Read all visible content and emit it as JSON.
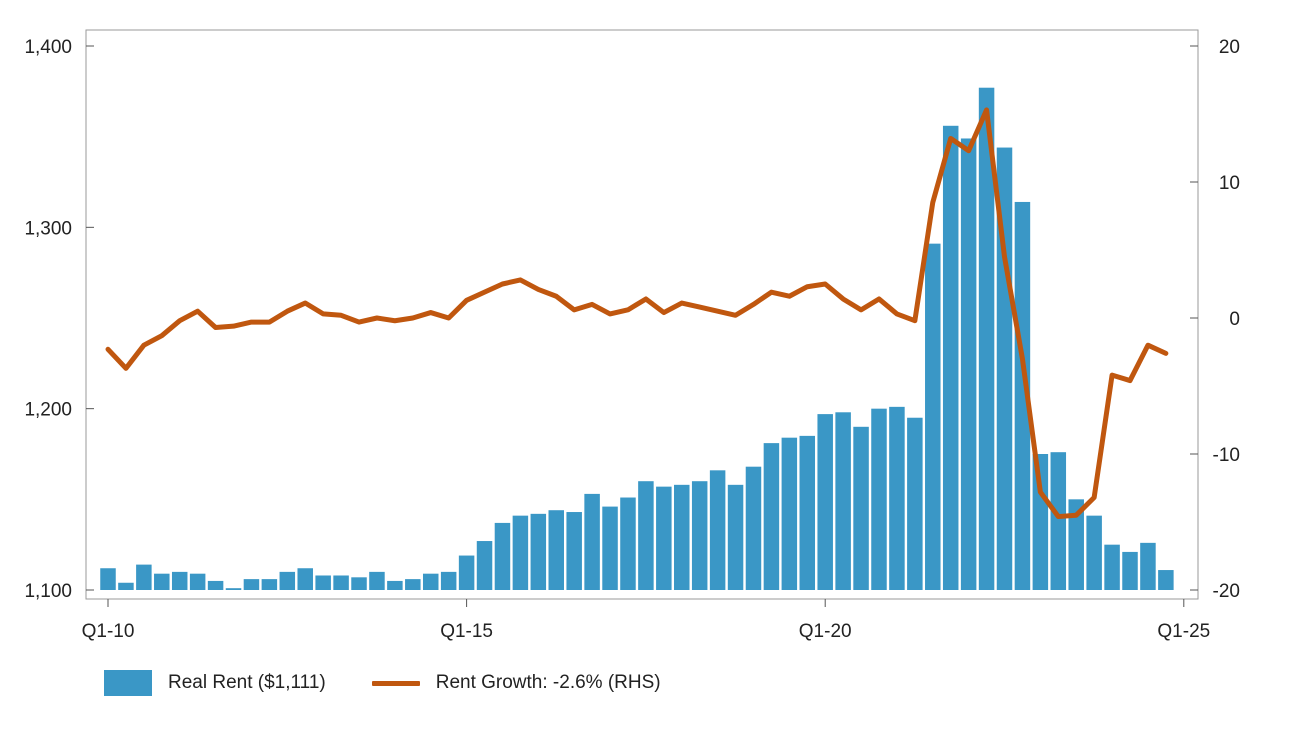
{
  "chart_data": {
    "type": "bar",
    "x_start": "Q1-10",
    "x_tick_labels": [
      "Q1-10",
      "Q1-15",
      "Q1-20",
      "Q1-25"
    ],
    "left_axis": {
      "ylim": [
        1100,
        1400
      ],
      "ticks": [
        "1,100",
        "1,200",
        "1,300",
        "1,400"
      ]
    },
    "right_axis": {
      "ylim": [
        -20,
        20
      ],
      "ticks": [
        "-20",
        "-10",
        "0",
        "10",
        "20"
      ]
    },
    "series": [
      {
        "name": "Real Rent ($1,111)",
        "type": "bar",
        "axis": "left",
        "color": "#3a97c6",
        "values": [
          1112,
          1104,
          1114,
          1109,
          1110,
          1109,
          1105,
          1101,
          1106,
          1106,
          1110,
          1112,
          1108,
          1108,
          1107,
          1110,
          1105,
          1106,
          1109,
          1110,
          1119,
          1127,
          1137,
          1141,
          1142,
          1144,
          1143,
          1153,
          1146,
          1151,
          1160,
          1157,
          1158,
          1160,
          1166,
          1158,
          1168,
          1181,
          1184,
          1185,
          1197,
          1198,
          1190,
          1200,
          1201,
          1195,
          1291,
          1356,
          1349,
          1377,
          1344,
          1314,
          1175,
          1176,
          1150,
          1141,
          1125,
          1121,
          1126,
          1111
        ]
      },
      {
        "name": "Rent Growth: -2.6% (RHS)",
        "type": "line",
        "axis": "right",
        "color": "#c0570f",
        "values": [
          -2.3,
          -3.7,
          -2.0,
          -1.3,
          -0.2,
          0.5,
          -0.7,
          -0.6,
          -0.3,
          -0.3,
          0.5,
          1.1,
          0.3,
          0.2,
          -0.3,
          0.0,
          -0.2,
          0.0,
          0.4,
          0.0,
          1.3,
          1.9,
          2.5,
          2.8,
          2.1,
          1.6,
          0.6,
          1.0,
          0.3,
          0.6,
          1.4,
          0.4,
          1.1,
          0.8,
          0.5,
          0.2,
          1.0,
          1.9,
          1.6,
          2.3,
          2.5,
          1.4,
          0.6,
          1.4,
          0.3,
          -0.2,
          8.5,
          13.2,
          12.3,
          15.3,
          4.5,
          -3.0,
          -12.8,
          -14.6,
          -14.5,
          -13.2,
          -4.2,
          -4.6,
          -2.0,
          -2.6
        ]
      }
    ],
    "grid": false,
    "legend_position": "bottom-left"
  },
  "legend": {
    "bar_label": "Real Rent ($1,111)",
    "line_label": "Rent Growth: -2.6% (RHS)"
  }
}
